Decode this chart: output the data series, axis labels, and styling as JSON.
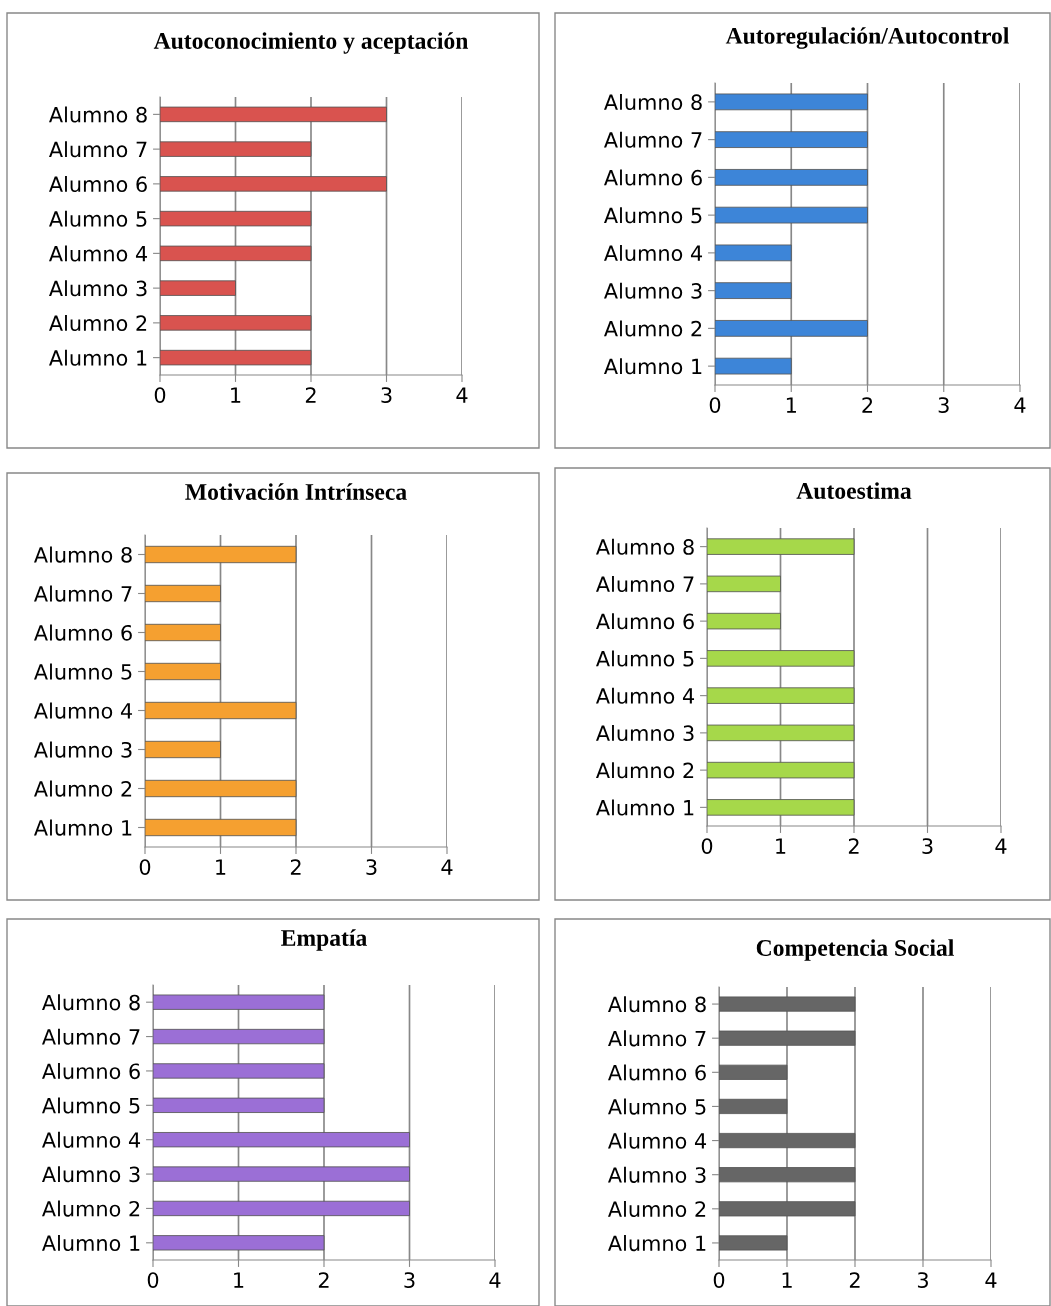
{
  "chart_data": [
    {
      "type": "bar",
      "orientation": "horizontal",
      "title": "Autoconocimiento y aceptación",
      "categories": [
        "Alumno 8",
        "Alumno 7",
        "Alumno 6",
        "Alumno 5",
        "Alumno 4",
        "Alumno 3",
        "Alumno 2",
        "Alumno 1"
      ],
      "values": [
        3,
        2,
        3,
        2,
        2,
        1,
        2,
        2
      ],
      "color": "#d9534f",
      "xlim": [
        0,
        4
      ],
      "xticks": [
        0,
        1,
        2,
        3,
        4
      ],
      "grid": "x"
    },
    {
      "type": "bar",
      "orientation": "horizontal",
      "title": "Autoregulación/Autocontrol",
      "categories": [
        "Alumno 8",
        "Alumno 7",
        "Alumno 6",
        "Alumno 5",
        "Alumno 4",
        "Alumno 3",
        "Alumno 2",
        "Alumno 1"
      ],
      "values": [
        2,
        2,
        2,
        2,
        1,
        1,
        2,
        1
      ],
      "color": "#3d85d8",
      "xlim": [
        0,
        4
      ],
      "xticks": [
        0,
        1,
        2,
        3,
        4
      ],
      "grid": "x"
    },
    {
      "type": "bar",
      "orientation": "horizontal",
      "title": "Motivación Intrínseca",
      "categories": [
        "Alumno 8",
        "Alumno 7",
        "Alumno 6",
        "Alumno 5",
        "Alumno 4",
        "Alumno 3",
        "Alumno 2",
        "Alumno 1"
      ],
      "values": [
        2,
        1,
        1,
        1,
        2,
        1,
        2,
        2
      ],
      "color": "#f5a030",
      "xlim": [
        0,
        4
      ],
      "xticks": [
        0,
        1,
        2,
        3,
        4
      ],
      "grid": "x"
    },
    {
      "type": "bar",
      "orientation": "horizontal",
      "title": "Autoestima",
      "categories": [
        "Alumno 8",
        "Alumno 7",
        "Alumno 6",
        "Alumno 5",
        "Alumno 4",
        "Alumno 3",
        "Alumno 2",
        "Alumno 1"
      ],
      "values": [
        2,
        1,
        1,
        2,
        2,
        2,
        2,
        2
      ],
      "color": "#a6d84a",
      "xlim": [
        0,
        4
      ],
      "xticks": [
        0,
        1,
        2,
        3,
        4
      ],
      "grid": "x"
    },
    {
      "type": "bar",
      "orientation": "horizontal",
      "title": "Empatía",
      "categories": [
        "Alumno 8",
        "Alumno 7",
        "Alumno 6",
        "Alumno 5",
        "Alumno 4",
        "Alumno 3",
        "Alumno 2",
        "Alumno 1"
      ],
      "values": [
        2,
        2,
        2,
        2,
        3,
        3,
        3,
        2
      ],
      "color": "#9b6fd6",
      "xlim": [
        0,
        4
      ],
      "xticks": [
        0,
        1,
        2,
        3,
        4
      ],
      "grid": "x"
    },
    {
      "type": "bar",
      "orientation": "horizontal",
      "title": "Competencia Social",
      "categories": [
        "Alumno 8",
        "Alumno 7",
        "Alumno 6",
        "Alumno 5",
        "Alumno 4",
        "Alumno 3",
        "Alumno 2",
        "Alumno 1"
      ],
      "values": [
        2,
        2,
        1,
        1,
        2,
        2,
        2,
        1
      ],
      "color": "#666666",
      "xlim": [
        0,
        4
      ],
      "xticks": [
        0,
        1,
        2,
        3,
        4
      ],
      "grid": "x"
    }
  ]
}
